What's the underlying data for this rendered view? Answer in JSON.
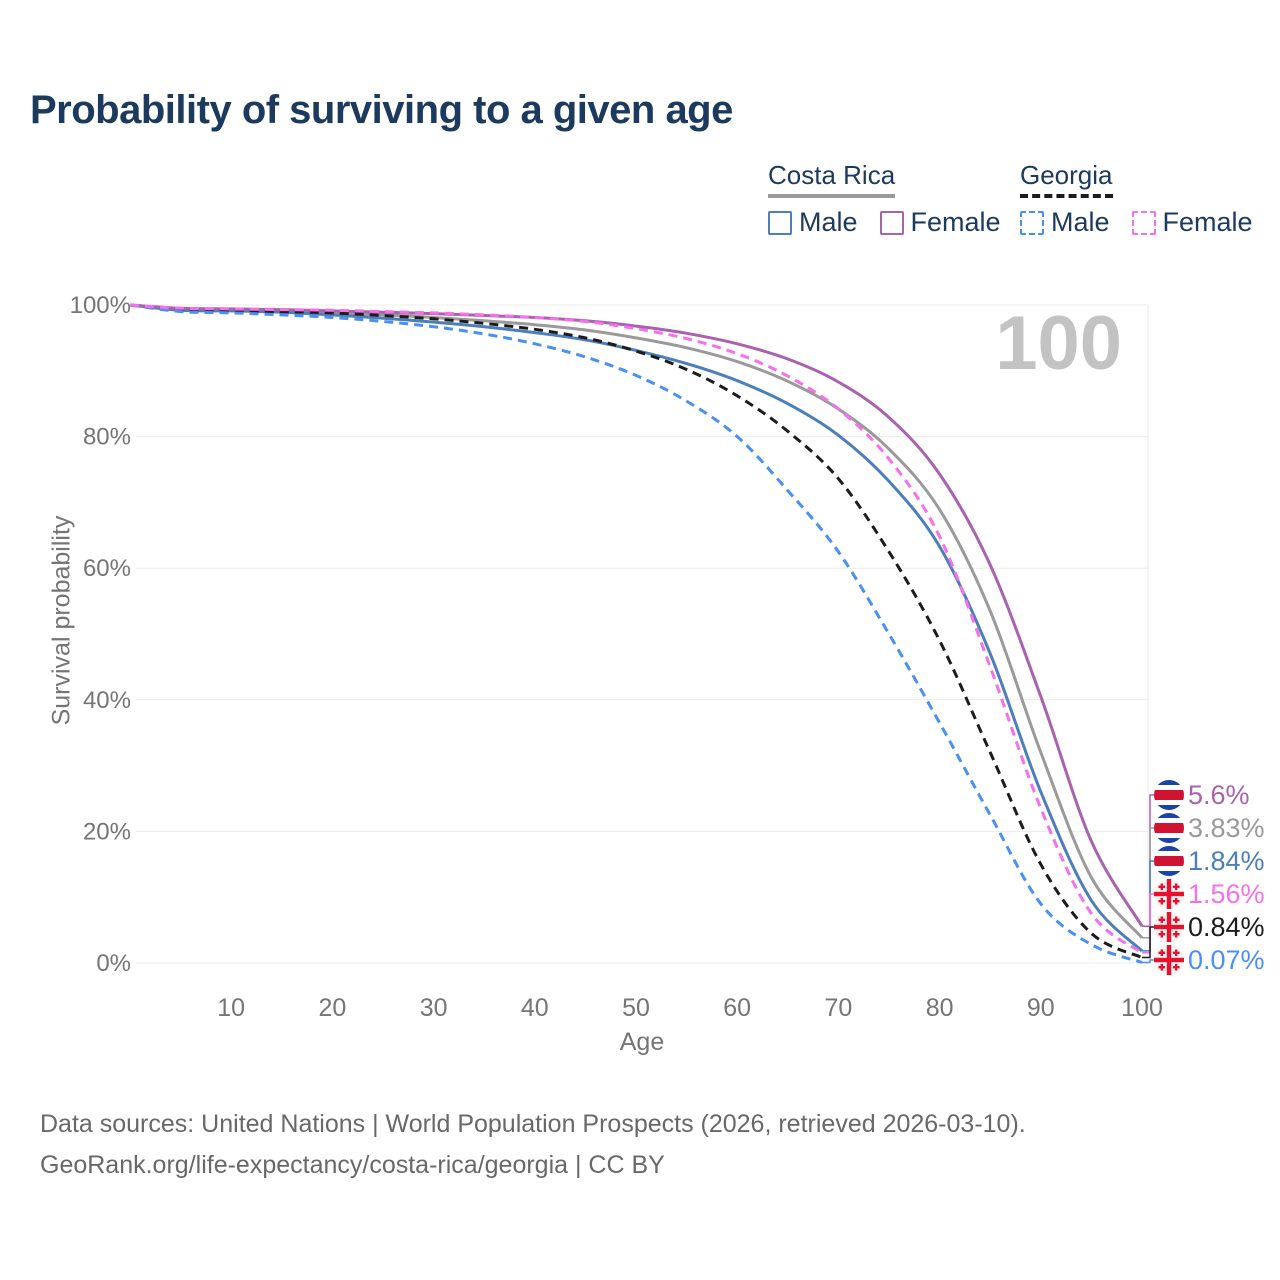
{
  "title": "Probability of surviving to a given age",
  "watermark_age": "100",
  "legend": {
    "groups": [
      {
        "label": "Costa Rica",
        "line_style": "solid",
        "line_color": "#9a9a9a",
        "items": [
          {
            "label": "Male",
            "color": "#4c7fba"
          },
          {
            "label": "Female",
            "color": "#a962ad"
          }
        ]
      },
      {
        "label": "Georgia",
        "line_style": "dashed",
        "line_color": "#1c1c1c",
        "items": [
          {
            "label": "Male",
            "color": "#4a90f2"
          },
          {
            "label": "Female",
            "color": "#f670ea"
          }
        ]
      }
    ]
  },
  "footer": {
    "line1": "Data sources: United Nations | World Population Prospects (2026, retrieved 2026-03-10).",
    "line2": "GeoRank.org/life-expectancy/costa-rica/georgia | CC BY"
  },
  "chart_data": {
    "type": "line",
    "title": "Probability of surviving to a given age",
    "xlabel": "Age",
    "ylabel": "Survival probability",
    "xlim": [
      0,
      100
    ],
    "ylim": [
      0,
      100
    ],
    "x_ticks": [
      10,
      20,
      30,
      40,
      50,
      60,
      70,
      80,
      90,
      100
    ],
    "y_ticks": [
      0,
      20,
      40,
      60,
      80,
      100
    ],
    "y_tick_suffix": "%",
    "grid": "horizontal",
    "legend_position": "top-right",
    "x": [
      0,
      5,
      10,
      15,
      20,
      25,
      30,
      35,
      40,
      45,
      50,
      55,
      60,
      65,
      70,
      75,
      80,
      85,
      90,
      95,
      100
    ],
    "series": [
      {
        "name": "Costa Rica Female",
        "country": "Costa Rica",
        "sex": "Female",
        "flag": "costa-rica-flag-icon",
        "color": "#a962ad",
        "dash": "solid",
        "end_label": "5.6%",
        "values": [
          100,
          99.5,
          99.4,
          99.3,
          99.1,
          98.9,
          98.7,
          98.4,
          98.1,
          97.6,
          96.8,
          95.7,
          94.1,
          91.8,
          88.3,
          82.9,
          74.3,
          60.5,
          40.5,
          18.5,
          5.6
        ]
      },
      {
        "name": "Costa Rica",
        "country": "Costa Rica",
        "sex": "Both",
        "flag": "costa-rica-flag-icon",
        "color": "#9a9a9a",
        "dash": "solid",
        "end_label": "3.83%",
        "values": [
          100,
          99.4,
          99.2,
          99.0,
          98.8,
          98.5,
          98.1,
          97.6,
          97.0,
          96.2,
          95.0,
          93.5,
          91.4,
          88.4,
          84.2,
          78.1,
          68.9,
          53.5,
          32.0,
          13.0,
          3.83
        ]
      },
      {
        "name": "Costa Rica Male",
        "country": "Costa Rica",
        "sex": "Male",
        "flag": "costa-rica-flag-icon",
        "color": "#4c7fba",
        "dash": "solid",
        "end_label": "1.84%",
        "values": [
          100,
          99.2,
          99.1,
          98.9,
          98.5,
          98.0,
          97.4,
          96.7,
          95.8,
          94.7,
          93.1,
          91.1,
          88.5,
          85.0,
          80.2,
          73.2,
          63.3,
          47.0,
          26.0,
          9.5,
          1.84
        ]
      },
      {
        "name": "Georgia Female",
        "country": "Georgia",
        "sex": "Female",
        "flag": "georgia-flag-icon",
        "color": "#f670ea",
        "dash": "dashed",
        "end_label": "1.56%",
        "values": [
          100,
          99.5,
          99.4,
          99.3,
          99.2,
          99.0,
          98.8,
          98.5,
          98.1,
          97.5,
          96.4,
          94.9,
          92.6,
          89.2,
          84.2,
          76.6,
          64.8,
          45.0,
          23.5,
          7.5,
          1.56
        ]
      },
      {
        "name": "Georgia",
        "country": "Georgia",
        "sex": "Both",
        "flag": "georgia-flag-icon",
        "color": "#1c1c1c",
        "dash": "dashed",
        "end_label": "0.84%",
        "values": [
          100,
          99.3,
          99.1,
          99.0,
          98.8,
          98.4,
          97.9,
          97.2,
          96.3,
          95.0,
          93.0,
          90.2,
          86.2,
          80.8,
          73.6,
          62.5,
          49.0,
          32.0,
          15.0,
          4.5,
          0.84
        ]
      },
      {
        "name": "Georgia Male",
        "country": "Georgia",
        "sex": "Male",
        "flag": "georgia-flag-icon",
        "color": "#4a90f2",
        "dash": "dashed",
        "end_label": "0.07%",
        "values": [
          100,
          99.0,
          98.8,
          98.5,
          98.1,
          97.5,
          96.7,
          95.6,
          94.1,
          92.1,
          89.3,
          85.4,
          80.0,
          71.8,
          62.5,
          50.0,
          36.5,
          22.5,
          9.0,
          2.8,
          0.07
        ]
      }
    ],
    "flag_colors": {
      "costa_rica_blue": "#1a43a5",
      "costa_rica_red": "#d01333",
      "georgia_red": "#e8112d",
      "georgia_bg": "#f3f3f3"
    }
  }
}
